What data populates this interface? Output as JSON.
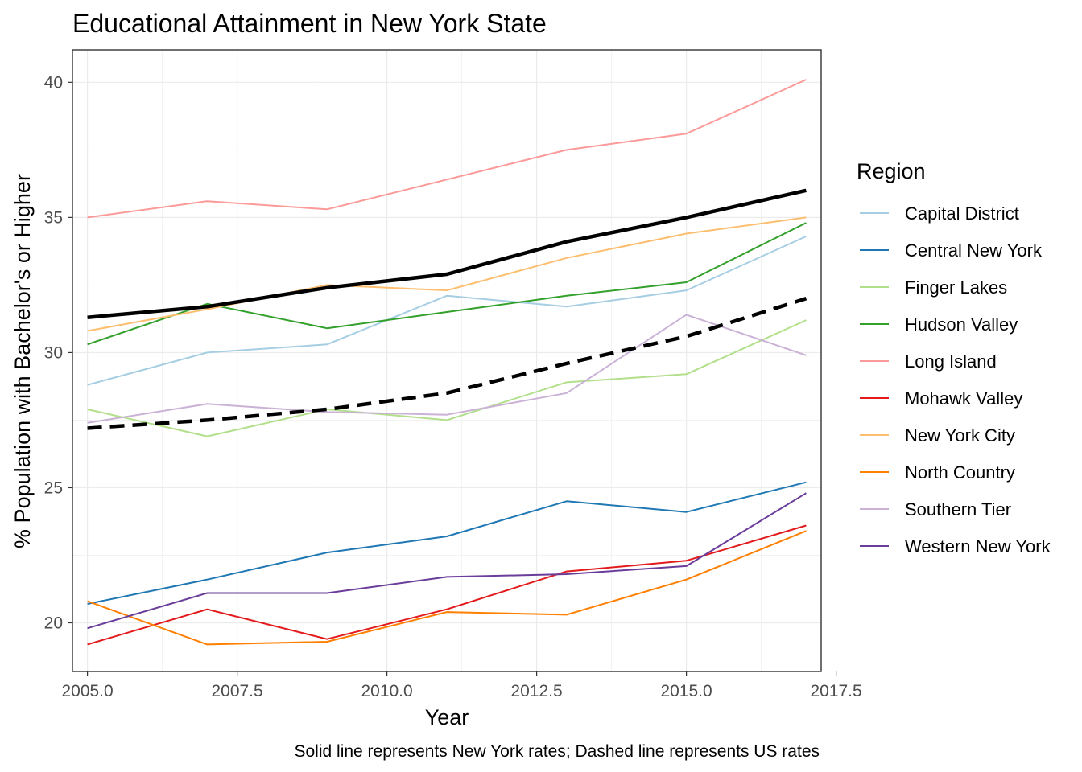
{
  "chart_data": {
    "type": "line",
    "title": "Educational Attainment in New York State",
    "xlabel": "Year",
    "ylabel": "% Population with Bachelor's or Higher",
    "caption": "Solid line represents New York rates; Dashed line represents US rates",
    "xlim": [
      2004.75,
      2017.25
    ],
    "ylim": [
      18.2,
      41.2
    ],
    "x_ticks": [
      2005,
      2007.5,
      2010,
      2012.5,
      2015,
      2017.5
    ],
    "x_tick_labels": [
      "2005.0",
      "2007.5",
      "2010.0",
      "2012.5",
      "2015.0",
      "2017.5"
    ],
    "y_ticks": [
      20,
      25,
      30,
      35,
      40
    ],
    "y_tick_labels": [
      "20",
      "25",
      "30",
      "35",
      "40"
    ],
    "grid": true,
    "legend_title": "Region",
    "legend_position": "right",
    "x": [
      2005,
      2007,
      2009,
      2011,
      2013,
      2015,
      2017
    ],
    "series": [
      {
        "name": "Capital District",
        "color": "#a6cee3",
        "values": [
          28.8,
          30.0,
          30.3,
          32.1,
          31.7,
          32.3,
          34.3
        ]
      },
      {
        "name": "Central New York",
        "color": "#1f78b4",
        "values": [
          20.7,
          21.6,
          22.6,
          23.2,
          24.5,
          24.1,
          25.2
        ]
      },
      {
        "name": "Finger Lakes",
        "color": "#b2df8a",
        "values": [
          27.9,
          26.9,
          27.9,
          27.5,
          28.9,
          29.2,
          31.2
        ]
      },
      {
        "name": "Hudson Valley",
        "color": "#33a02c",
        "values": [
          30.3,
          31.8,
          30.9,
          31.5,
          32.1,
          32.6,
          34.8
        ]
      },
      {
        "name": "Long Island",
        "color": "#fb9a99",
        "values": [
          35.0,
          35.6,
          35.3,
          36.4,
          37.5,
          38.1,
          40.1
        ]
      },
      {
        "name": "Mohawk Valley",
        "color": "#e31a1c",
        "values": [
          19.2,
          20.5,
          19.4,
          20.5,
          21.9,
          22.3,
          23.6
        ]
      },
      {
        "name": "New York City",
        "color": "#fdbf6f",
        "values": [
          30.8,
          31.6,
          32.5,
          32.3,
          33.5,
          34.4,
          35.0
        ]
      },
      {
        "name": "North Country",
        "color": "#ff7f00",
        "values": [
          20.8,
          19.2,
          19.3,
          20.4,
          20.3,
          21.6,
          23.4
        ]
      },
      {
        "name": "Southern Tier",
        "color": "#cab2d6",
        "values": [
          27.4,
          28.1,
          27.8,
          27.7,
          28.5,
          31.4,
          29.9
        ]
      },
      {
        "name": "Western New York",
        "color": "#6a3d9a",
        "values": [
          19.8,
          21.1,
          21.1,
          21.7,
          21.8,
          22.1,
          24.8
        ]
      }
    ],
    "reference_lines": [
      {
        "label": "New York",
        "style": "solid",
        "color": "#000000",
        "values": [
          31.3,
          31.7,
          32.4,
          32.9,
          34.1,
          35.0,
          36.0
        ]
      },
      {
        "label": "US",
        "style": "dashed",
        "color": "#000000",
        "values": [
          27.2,
          27.5,
          27.9,
          28.5,
          29.6,
          30.6,
          32.0
        ]
      }
    ]
  }
}
